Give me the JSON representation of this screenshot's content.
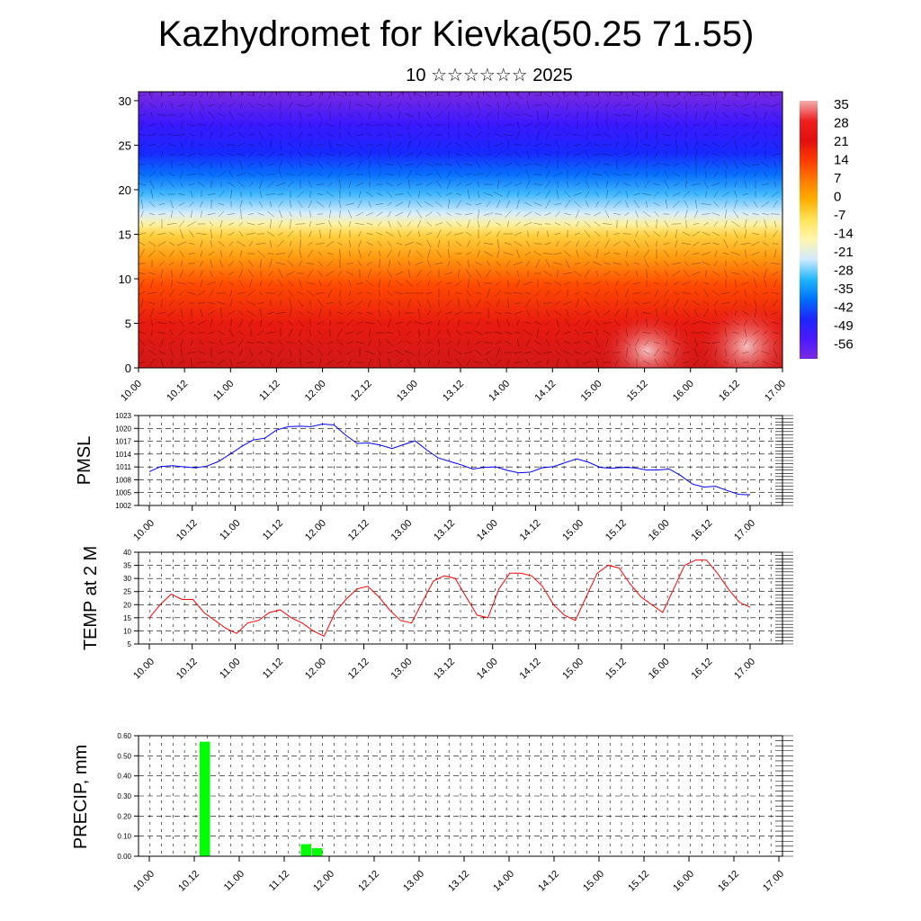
{
  "page": {
    "title": "Kazhydromet for Kievka(50.25 71.55)",
    "subtitle": "10 ☆☆☆☆☆☆ 2025"
  },
  "colors": {
    "pmsl_line": "#0000ff",
    "temp_line": "#ff0000",
    "precip_bar": "#00ff00",
    "gridline": "#000000"
  },
  "chart_data": [
    {
      "type": "heatmap",
      "title": "",
      "xlabel": "",
      "ylabel": "",
      "x_tick_labels": [
        "10.00",
        "10.12",
        "11.00",
        "11.12",
        "12.00",
        "12.12",
        "13.00",
        "13.12",
        "14.00",
        "14.12",
        "15.00",
        "15.12",
        "16.00",
        "16.12",
        "17.00"
      ],
      "y_ticks": [
        0,
        5,
        10,
        15,
        20,
        25,
        30
      ],
      "ylim": [
        0,
        31
      ],
      "colorbar_labels": [
        "35",
        "28",
        "21",
        "14",
        "7",
        "0",
        "-7",
        "-14",
        "-21",
        "-28",
        "-35",
        "-42",
        "-49",
        "-56"
      ],
      "colorbar_stops": [
        "#f2b0b0",
        "#ee2020",
        "#e01010",
        "#ff3a00",
        "#ff7a00",
        "#ffb000",
        "#ffe45a",
        "#fff6b0",
        "#cfeaff",
        "#20b6ff",
        "#0070ff",
        "#1f24ff",
        "#4a1aff",
        "#7a2ae0"
      ],
      "wind_vectors": "overlay"
    },
    {
      "type": "line",
      "title": "",
      "ylabel": "PMSL",
      "xlabel": "",
      "x_tick_labels": [
        "10.00",
        "10.12",
        "11.00",
        "11.12",
        "12.00",
        "12.12",
        "13.00",
        "13.12",
        "14.00",
        "14.12",
        "15.00",
        "15.12",
        "16.00",
        "16.12",
        "17.00"
      ],
      "y_ticks": [
        1002,
        1005,
        1008,
        1011,
        1014,
        1017,
        1020,
        1023
      ],
      "ylim": [
        1002,
        1023
      ],
      "grid": true,
      "series": [
        {
          "values": [
            1009.9,
            1011.1,
            1011.3,
            1011.0,
            1010.8,
            1011.2,
            1012.3,
            1014.0,
            1015.8,
            1017.3,
            1017.7,
            1019.6,
            1020.4,
            1020.5,
            1020.4,
            1021.0,
            1020.8,
            1018.4,
            1016.5,
            1016.6,
            1016.1,
            1015.3,
            1016.2,
            1017.1,
            1015.0,
            1013.1,
            1012.3,
            1011.5,
            1010.5,
            1010.9,
            1011.0,
            1010.2,
            1009.6,
            1009.8,
            1010.8,
            1011.1,
            1012.0,
            1012.9,
            1012.1,
            1010.9,
            1010.7,
            1010.9,
            1010.8,
            1010.3,
            1010.3,
            1010.5,
            1009.0,
            1007.0,
            1006.3,
            1006.5,
            1005.5,
            1004.6,
            1004.5
          ]
        }
      ]
    },
    {
      "type": "line",
      "title": "",
      "ylabel": "TEMP at 2 M",
      "xlabel": "",
      "x_tick_labels": [
        "10.00",
        "10.12",
        "11.00",
        "11.12",
        "12.00",
        "12.12",
        "13.00",
        "13.12",
        "14.00",
        "14.12",
        "15.00",
        "15.12",
        "16.00",
        "16.12",
        "17.00"
      ],
      "y_ticks": [
        5,
        10,
        15,
        20,
        25,
        30,
        35,
        40
      ],
      "ylim": [
        5,
        40
      ],
      "grid": true,
      "series": [
        {
          "values": [
            15,
            20,
            24,
            22,
            22,
            17,
            14,
            11,
            9,
            13,
            14,
            17,
            18,
            15,
            13,
            10,
            8,
            17,
            22,
            26,
            27,
            23,
            18,
            14,
            13,
            21,
            29,
            31,
            30,
            23,
            16,
            15,
            26,
            32,
            32,
            31,
            27,
            20,
            16,
            14,
            23,
            32,
            35,
            34,
            28,
            23,
            20,
            17,
            26,
            35,
            37,
            37,
            32,
            26,
            21,
            19
          ]
        }
      ]
    },
    {
      "type": "bar",
      "title": "",
      "ylabel": "PRECIP, mm",
      "xlabel": "",
      "x_tick_labels": [
        "10.00",
        "10.12",
        "11.00",
        "11.12",
        "12.00",
        "12.12",
        "13.00",
        "13.12",
        "14.00",
        "14.12",
        "15.00",
        "15.12",
        "16.00",
        "16.12",
        "17.00"
      ],
      "y_tick_labels": [
        "0.00",
        "0.10",
        "0.20",
        "0.30",
        "0.40",
        "0.50",
        "0.60"
      ],
      "ylim": [
        0,
        0.6
      ],
      "grid": true,
      "bars": [
        {
          "time_hours": 12,
          "value": 0.57
        },
        {
          "time_hours": 39,
          "value": 0.06
        },
        {
          "time_hours": 42,
          "value": 0.04
        }
      ]
    }
  ]
}
